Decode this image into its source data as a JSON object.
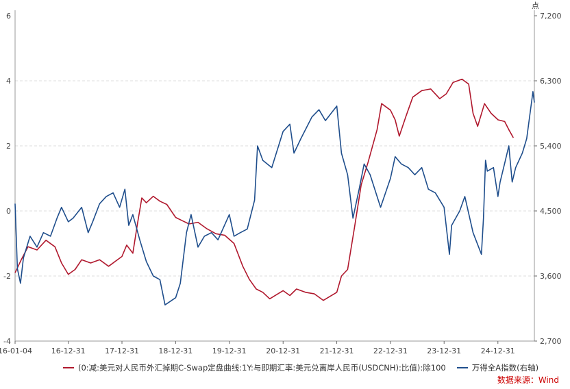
{
  "chart_data": {
    "type": "line",
    "x_ticks": [
      "16-01-04",
      "16-12-31",
      "17-12-31",
      "18-12-31",
      "19-12-31",
      "20-12-31",
      "21-12-31",
      "22-12-31",
      "23-12-31",
      "24-12-31"
    ],
    "y_left": {
      "ticks": [
        "-4",
        "-2",
        "0",
        "2",
        "4",
        "6"
      ],
      "range": [
        -4,
        6
      ]
    },
    "y_right": {
      "ticks": [
        "2,700",
        "3,600",
        "4,500",
        "5,400",
        "6,300",
        "7,200"
      ],
      "range": [
        2700,
        7200
      ],
      "unit": "点"
    },
    "grid": "horizontal dashed",
    "legend_position": "bottom",
    "series": [
      {
        "name": "(0:减:美元对人民币外汇掉期C-Swap定盘曲线:1Y:与即期汇率:美元兑离岸人民币(USDCNH):比值):除100",
        "axis": "left",
        "color": "#b0182d",
        "points": [
          [
            "2016-01-04",
            -1.9
          ],
          [
            "2016-02-15",
            -1.5
          ],
          [
            "2016-04-01",
            -1.1
          ],
          [
            "2016-06-01",
            -1.2
          ],
          [
            "2016-08-01",
            -0.9
          ],
          [
            "2016-10-01",
            -1.1
          ],
          [
            "2016-11-15",
            -1.6
          ],
          [
            "2016-12-31",
            -1.95
          ],
          [
            "2017-02-15",
            -1.8
          ],
          [
            "2017-04-01",
            -1.5
          ],
          [
            "2017-06-01",
            -1.6
          ],
          [
            "2017-08-01",
            -1.5
          ],
          [
            "2017-10-01",
            -1.7
          ],
          [
            "2017-12-31",
            -1.4
          ],
          [
            "2018-02-01",
            -1.05
          ],
          [
            "2018-03-15",
            -1.3
          ],
          [
            "2018-04-15",
            -0.4
          ],
          [
            "2018-05-15",
            0.4
          ],
          [
            "2018-06-15",
            0.25
          ],
          [
            "2018-08-01",
            0.45
          ],
          [
            "2018-09-15",
            0.3
          ],
          [
            "2018-11-01",
            0.2
          ],
          [
            "2018-12-31",
            -0.2
          ],
          [
            "2019-02-15",
            -0.3
          ],
          [
            "2019-04-01",
            -0.4
          ],
          [
            "2019-06-01",
            -0.35
          ],
          [
            "2019-08-01",
            -0.55
          ],
          [
            "2019-10-01",
            -0.7
          ],
          [
            "2019-12-01",
            -0.75
          ],
          [
            "2020-02-01",
            -1.0
          ],
          [
            "2020-04-01",
            -1.7
          ],
          [
            "2020-05-15",
            -2.1
          ],
          [
            "2020-07-01",
            -2.4
          ],
          [
            "2020-08-15",
            -2.5
          ],
          [
            "2020-10-01",
            -2.7
          ],
          [
            "2020-12-31",
            -2.45
          ],
          [
            "2021-02-15",
            -2.6
          ],
          [
            "2021-04-01",
            -2.4
          ],
          [
            "2021-06-01",
            -2.5
          ],
          [
            "2021-08-01",
            -2.55
          ],
          [
            "2021-10-01",
            -2.75
          ],
          [
            "2021-12-31",
            -2.5
          ],
          [
            "2022-02-01",
            -2.0
          ],
          [
            "2022-03-15",
            -1.8
          ],
          [
            "2022-05-01",
            -0.5
          ],
          [
            "2022-06-15",
            0.8
          ],
          [
            "2022-08-01",
            1.5
          ],
          [
            "2022-10-01",
            2.5
          ],
          [
            "2022-11-01",
            3.3
          ],
          [
            "2022-12-31",
            3.1
          ],
          [
            "2023-02-01",
            2.8
          ],
          [
            "2023-03-01",
            2.3
          ],
          [
            "2023-04-15",
            2.9
          ],
          [
            "2023-06-01",
            3.5
          ],
          [
            "2023-08-01",
            3.7
          ],
          [
            "2023-10-01",
            3.75
          ],
          [
            "2023-12-01",
            3.45
          ],
          [
            "2024-01-15",
            3.6
          ],
          [
            "2024-03-01",
            3.95
          ],
          [
            "2024-05-01",
            4.05
          ],
          [
            "2024-06-15",
            3.9
          ],
          [
            "2024-07-15",
            3.0
          ],
          [
            "2024-08-15",
            2.6
          ],
          [
            "2024-10-01",
            3.3
          ],
          [
            "2024-11-15",
            3.0
          ],
          [
            "2025-01-01",
            2.8
          ],
          [
            "2025-02-15",
            2.75
          ],
          [
            "2025-03-15",
            2.5
          ],
          [
            "2025-04-15",
            2.25
          ]
        ]
      },
      {
        "name": "万得全A指数(右轴)",
        "axis": "right",
        "color": "#1f4e8c",
        "points": [
          [
            "2016-01-04",
            4600
          ],
          [
            "2016-01-20",
            3700
          ],
          [
            "2016-02-10",
            3500
          ],
          [
            "2016-03-01",
            3850
          ],
          [
            "2016-04-15",
            4150
          ],
          [
            "2016-06-01",
            4000
          ],
          [
            "2016-07-15",
            4200
          ],
          [
            "2016-09-01",
            4150
          ],
          [
            "2016-10-15",
            4400
          ],
          [
            "2016-11-15",
            4550
          ],
          [
            "2016-12-31",
            4350
          ],
          [
            "2017-02-01",
            4400
          ],
          [
            "2017-04-01",
            4550
          ],
          [
            "2017-05-15",
            4200
          ],
          [
            "2017-06-15",
            4350
          ],
          [
            "2017-08-01",
            4600
          ],
          [
            "2017-09-15",
            4700
          ],
          [
            "2017-11-01",
            4750
          ],
          [
            "2017-12-15",
            4550
          ],
          [
            "2018-01-20",
            4800
          ],
          [
            "2018-02-15",
            4300
          ],
          [
            "2018-03-15",
            4450
          ],
          [
            "2018-05-01",
            4100
          ],
          [
            "2018-06-15",
            3800
          ],
          [
            "2018-08-01",
            3600
          ],
          [
            "2018-09-15",
            3550
          ],
          [
            "2018-10-20",
            3200
          ],
          [
            "2018-12-31",
            3300
          ],
          [
            "2019-02-01",
            3500
          ],
          [
            "2019-03-15",
            4200
          ],
          [
            "2019-04-15",
            4450
          ],
          [
            "2019-06-01",
            4000
          ],
          [
            "2019-07-15",
            4150
          ],
          [
            "2019-09-01",
            4200
          ],
          [
            "2019-10-15",
            4100
          ],
          [
            "2019-12-31",
            4450
          ],
          [
            "2020-02-01",
            4150
          ],
          [
            "2020-03-15",
            4200
          ],
          [
            "2020-05-01",
            4250
          ],
          [
            "2020-06-20",
            4650
          ],
          [
            "2020-07-10",
            5400
          ],
          [
            "2020-08-15",
            5200
          ],
          [
            "2020-10-15",
            5100
          ],
          [
            "2020-12-31",
            5600
          ],
          [
            "2021-02-15",
            5700
          ],
          [
            "2021-03-15",
            5300
          ],
          [
            "2021-05-01",
            5500
          ],
          [
            "2021-07-15",
            5800
          ],
          [
            "2021-09-01",
            5900
          ],
          [
            "2021-10-15",
            5750
          ],
          [
            "2021-12-31",
            5950
          ],
          [
            "2022-02-01",
            5300
          ],
          [
            "2022-03-15",
            5000
          ],
          [
            "2022-04-20",
            4400
          ],
          [
            "2022-06-01",
            4800
          ],
          [
            "2022-07-05",
            5150
          ],
          [
            "2022-08-15",
            5000
          ],
          [
            "2022-10-25",
            4550
          ],
          [
            "2022-12-31",
            4950
          ],
          [
            "2023-02-01",
            5250
          ],
          [
            "2023-03-15",
            5150
          ],
          [
            "2023-05-01",
            5100
          ],
          [
            "2023-06-15",
            5000
          ],
          [
            "2023-08-01",
            5100
          ],
          [
            "2023-09-15",
            4800
          ],
          [
            "2023-11-01",
            4750
          ],
          [
            "2023-12-31",
            4550
          ],
          [
            "2024-02-05",
            3900
          ],
          [
            "2024-02-20",
            4300
          ],
          [
            "2024-04-15",
            4500
          ],
          [
            "2024-05-20",
            4700
          ],
          [
            "2024-07-15",
            4200
          ],
          [
            "2024-09-10",
            3900
          ],
          [
            "2024-09-24",
            4400
          ],
          [
            "2024-10-08",
            5200
          ],
          [
            "2024-10-20",
            5050
          ],
          [
            "2024-12-01",
            5100
          ],
          [
            "2024-12-31",
            4700
          ],
          [
            "2025-01-15",
            4900
          ],
          [
            "2025-02-20",
            5200
          ],
          [
            "2025-03-15",
            5400
          ],
          [
            "2025-04-07",
            4900
          ],
          [
            "2025-05-01",
            5100
          ],
          [
            "2025-06-15",
            5300
          ],
          [
            "2025-07-15",
            5500
          ],
          [
            "2025-08-10",
            5900
          ],
          [
            "2025-08-26",
            6150
          ],
          [
            "2025-09-05",
            6000
          ]
        ]
      }
    ],
    "source": "数据来源：Wind"
  }
}
